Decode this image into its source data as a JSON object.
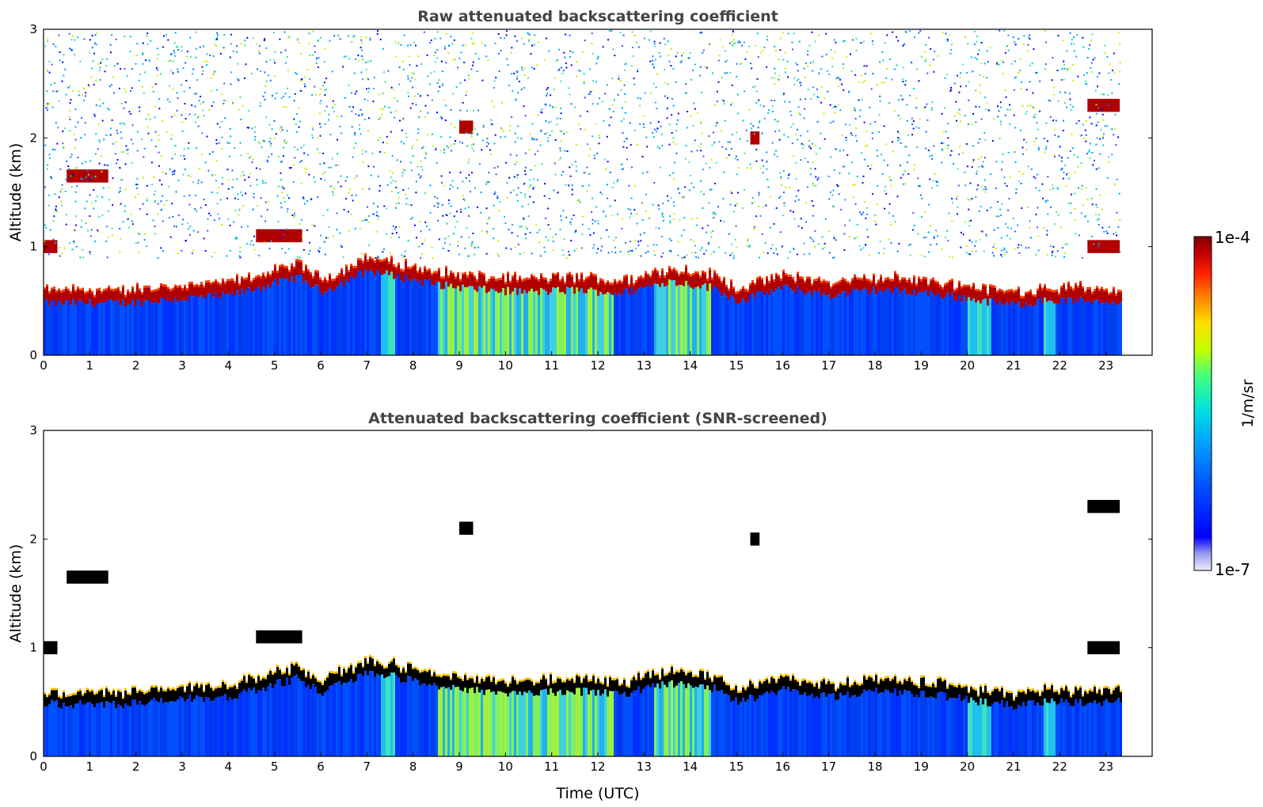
{
  "chart_data": [
    {
      "type": "heatmap",
      "title": "Raw attenuated backscattering coefficient",
      "xlabel": "",
      "ylabel": "Altitude (km)",
      "xlim": [
        0,
        24
      ],
      "ylim": [
        0,
        3
      ],
      "x_ticks": [
        "0",
        "1",
        "2",
        "3",
        "4",
        "5",
        "6",
        "7",
        "8",
        "9",
        "10",
        "11",
        "12",
        "13",
        "14",
        "15",
        "16",
        "17",
        "18",
        "19",
        "20",
        "21",
        "22",
        "23"
      ],
      "y_ticks": [
        "0",
        "1",
        "2",
        "3"
      ],
      "data_end_hour": 23.3,
      "noise_region": "speckled low-SNR background above boundary layer",
      "cloud_layer_km": [
        {
          "x": 1.6,
          "y": 0.48
        },
        {
          "x": 3.0,
          "y": 0.52
        },
        {
          "x": 4.0,
          "y": 0.55
        },
        {
          "x": 5.5,
          "y": 0.72
        },
        {
          "x": 6.0,
          "y": 0.58
        },
        {
          "x": 7.0,
          "y": 0.78
        },
        {
          "x": 8.5,
          "y": 0.65
        },
        {
          "x": 9.5,
          "y": 0.6
        },
        {
          "x": 10.5,
          "y": 0.58
        },
        {
          "x": 11.5,
          "y": 0.6
        },
        {
          "x": 12.5,
          "y": 0.57
        },
        {
          "x": 13.5,
          "y": 0.68
        },
        {
          "x": 14.5,
          "y": 0.62
        },
        {
          "x": 15.0,
          "y": 0.5
        },
        {
          "x": 16.0,
          "y": 0.62
        },
        {
          "x": 17.0,
          "y": 0.55
        },
        {
          "x": 18.0,
          "y": 0.6
        },
        {
          "x": 19.0,
          "y": 0.58
        },
        {
          "x": 20.0,
          "y": 0.52
        },
        {
          "x": 21.0,
          "y": 0.46
        },
        {
          "x": 21.5,
          "y": 0.5
        },
        {
          "x": 22.5,
          "y": 0.5
        }
      ],
      "elevated_layers_km": [
        {
          "x0": 0.5,
          "x1": 1.4,
          "y": 1.65
        },
        {
          "x0": 0.0,
          "x1": 0.3,
          "y": 1.0
        },
        {
          "x0": 4.6,
          "x1": 5.6,
          "y": 1.1
        },
        {
          "x0": 9.0,
          "x1": 9.3,
          "y": 2.1
        },
        {
          "x0": 15.3,
          "x1": 15.5,
          "y": 2.0
        },
        {
          "x0": 22.6,
          "x1": 23.3,
          "y": 2.3
        },
        {
          "x0": 22.6,
          "x1": 23.3,
          "y": 1.0
        }
      ]
    },
    {
      "type": "heatmap",
      "title": "Attenuated backscattering coefficient (SNR-screened)",
      "xlabel": "Time (UTC)",
      "ylabel": "Altitude (km)",
      "xlim": [
        0,
        24
      ],
      "ylim": [
        0,
        3
      ],
      "x_ticks": [
        "0",
        "1",
        "2",
        "3",
        "4",
        "5",
        "6",
        "7",
        "8",
        "9",
        "10",
        "11",
        "12",
        "13",
        "14",
        "15",
        "16",
        "17",
        "18",
        "19",
        "20",
        "21",
        "22",
        "23"
      ],
      "y_ticks": [
        "0",
        "1",
        "2",
        "3"
      ],
      "data_end_hour": 23.3,
      "saturated_color": "#000000"
    }
  ],
  "colorbar": {
    "label": "1/m/sr",
    "max_label": "1e-4",
    "min_label": "1e-7",
    "colors": [
      "#e8e8f8",
      "#9a9aee",
      "#0000ff",
      "#0050ff",
      "#00a0ff",
      "#00e0e0",
      "#40ff80",
      "#c0ff00",
      "#ffe000",
      "#ff8000",
      "#ff2000",
      "#c00000",
      "#800000"
    ]
  }
}
